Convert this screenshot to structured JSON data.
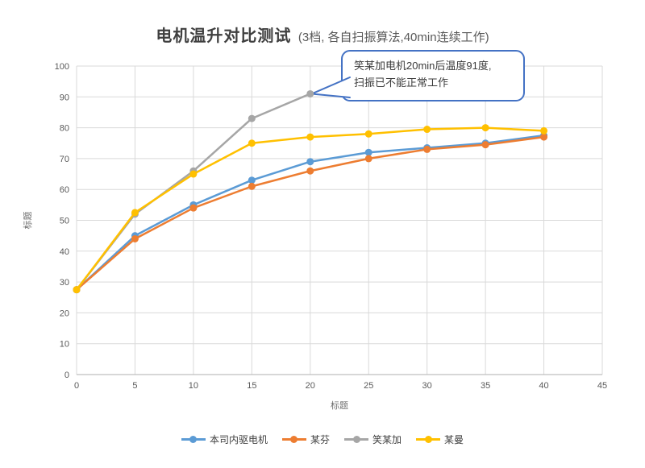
{
  "title": {
    "main": "电机温升对比测试",
    "sub": "(3档, 各自扫振算法,40min连续工作)"
  },
  "annotation": {
    "line1": "笑某加电机20min后温度91度,",
    "line2": "扫振已不能正常工作",
    "points_to": {
      "x": 20,
      "y": 91
    },
    "border_color": "#4472C4"
  },
  "chart_data": {
    "type": "line",
    "title": "电机温升对比测试 (3档, 各自扫振算法,40min连续工作)",
    "xlabel": "标题",
    "ylabel": "标题",
    "xlim": [
      0,
      45
    ],
    "ylim": [
      0,
      100
    ],
    "x_ticks": [
      0,
      5,
      10,
      15,
      20,
      25,
      30,
      35,
      40,
      45
    ],
    "y_ticks": [
      0,
      10,
      20,
      30,
      40,
      50,
      60,
      70,
      80,
      90,
      100
    ],
    "grid": true,
    "legend_position": "bottom",
    "x": [
      0,
      5,
      10,
      15,
      20,
      25,
      30,
      35,
      40
    ],
    "series": [
      {
        "name": "本司内驱电机",
        "color": "#5B9BD5",
        "values": [
          27.5,
          45,
          55,
          63,
          69,
          72,
          73.5,
          75,
          77.5
        ]
      },
      {
        "name": "某芬",
        "color": "#ED7D31",
        "values": [
          27.5,
          44,
          54,
          61,
          66,
          70,
          73,
          74.5,
          77
        ]
      },
      {
        "name": "笑某加",
        "color": "#A6A6A6",
        "values": [
          27.5,
          52,
          66,
          83,
          91
        ]
      },
      {
        "name": "某曼",
        "color": "#FFC000",
        "values": [
          27.5,
          52.5,
          65,
          75,
          77,
          78,
          79.5,
          80,
          79
        ]
      }
    ]
  },
  "colors": {
    "grid": "#D9D9D9",
    "axis": "#BFBFBF",
    "tick_label": "#595959",
    "title_text": "#3f3f3f",
    "callout_fill": "#FFFFFF"
  }
}
